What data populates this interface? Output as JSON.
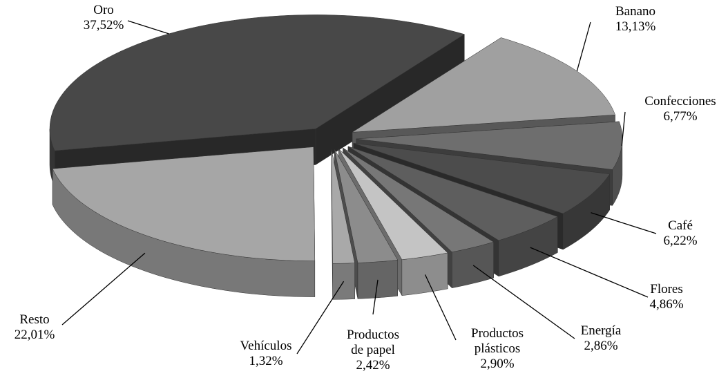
{
  "chart_data": {
    "type": "pie3d",
    "categories": [
      "Banano",
      "Confecciones",
      "Café",
      "Flores",
      "Energía",
      "Productos plásticos",
      "Productos de papel",
      "Vehículos",
      "Resto",
      "Oro"
    ],
    "values": [
      13.13,
      6.77,
      6.22,
      4.86,
      2.86,
      2.9,
      2.42,
      1.32,
      22.01,
      37.52
    ],
    "value_labels": [
      "13,13%",
      "6,77%",
      "6,22%",
      "4,86%",
      "2,86%",
      "2,90%",
      "2,42%",
      "1,32%",
      "22,01%",
      "37,52%"
    ],
    "colors": [
      "#a0a0a0",
      "#6e6e6e",
      "#4c4c4c",
      "#5e5e5e",
      "#777777",
      "#c4c4c4",
      "#8c8c8c",
      "#a9a9a9",
      "#a6a6a6",
      "#484848"
    ]
  }
}
